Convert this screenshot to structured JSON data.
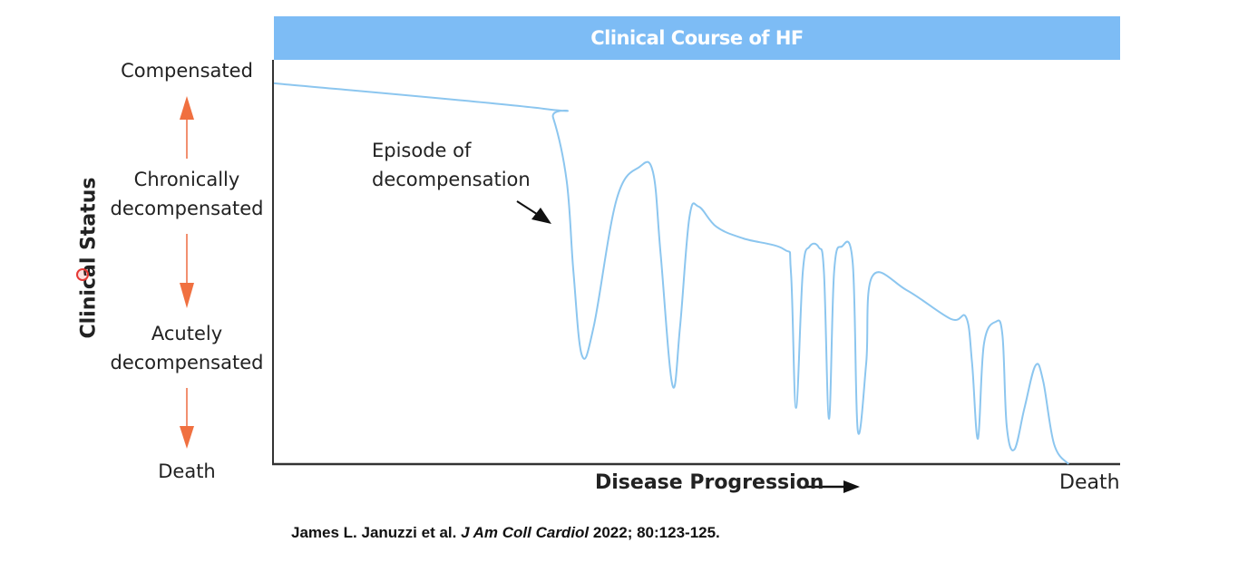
{
  "chart_data": {
    "type": "line",
    "title": "Clinical Course of HF",
    "xlabel": "Disease Progression",
    "x_end_label": "Death",
    "ylabel": "Clinical Status",
    "y_tick_labels": [
      {
        "line1": "Compensated",
        "line2": ""
      },
      {
        "line1": "Chronically",
        "line2": "decompensated"
      },
      {
        "line1": "Acutely",
        "line2": "decompensated"
      },
      {
        "line1": "Death",
        "line2": ""
      }
    ],
    "xlim": [
      0,
      100
    ],
    "ylim": [
      0,
      100
    ],
    "grid": false,
    "annotation": {
      "line1": "Episode of",
      "line2": "decompensation",
      "target_x": 34.0
    },
    "series": [
      {
        "name": "Clinical status",
        "color": "#8cc6ef",
        "x": [
          0,
          31.9,
          33.0,
          34.6,
          35.4,
          36.4,
          37.8,
          40.5,
          43.2,
          44.8,
          45.7,
          47.1,
          48.0,
          49.1,
          50.2,
          52.3,
          55.5,
          60.3,
          61.1,
          61.7,
          62.5,
          63.3,
          64.4,
          65.0,
          65.6,
          66.2,
          67.1,
          68.4,
          69.0,
          70.0,
          70.7,
          74.8,
          80.0,
          81.8,
          82.5,
          83.2,
          83.9,
          85.3,
          86.1,
          86.6,
          87.5,
          88.7,
          90.0,
          90.9,
          92.2,
          93.9
        ],
        "y": [
          94.2,
          87.9,
          85.7,
          70.0,
          47.5,
          26.9,
          34.1,
          65.5,
          73.5,
          72.2,
          52.0,
          19.5,
          34.1,
          61.0,
          63.7,
          58.7,
          55.8,
          53.1,
          47.5,
          13.9,
          47.5,
          53.8,
          53.6,
          47.5,
          11.2,
          47.5,
          53.8,
          49.8,
          8.3,
          25.1,
          46.4,
          43.0,
          35.9,
          36.3,
          25.1,
          6.3,
          29.6,
          35.2,
          31.8,
          9.4,
          3.6,
          13.9,
          24.4,
          20.6,
          4.9,
          0
        ]
      }
    ]
  },
  "citation": {
    "authors": "James L. Januzzi et al.",
    "journal": "J Am Coll Cardiol",
    "details": "2022; 80:123-125."
  },
  "colors": {
    "header": "#7dbcf5",
    "arrows": "#f07040",
    "line": "#8cc6ef"
  }
}
